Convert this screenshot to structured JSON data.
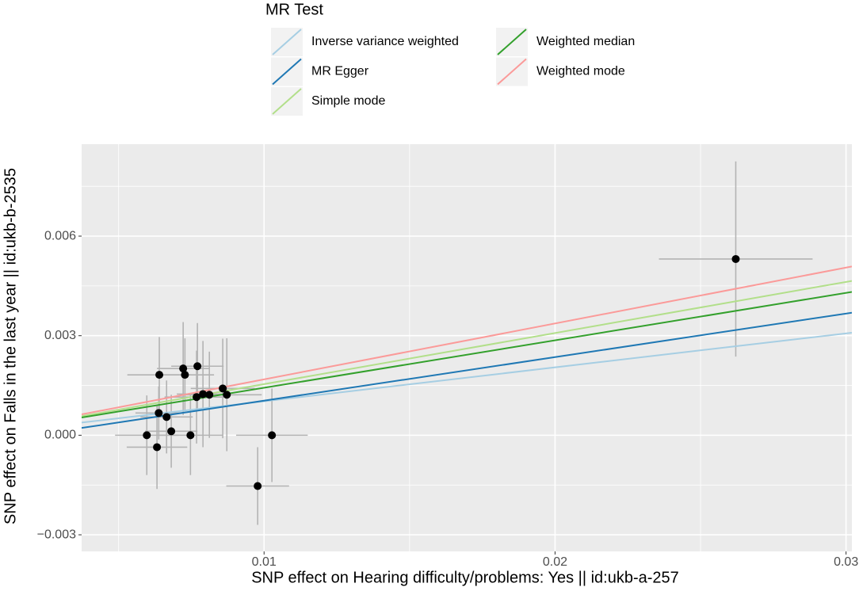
{
  "chart_data": {
    "type": "scatter",
    "xlabel": "SNP effect on Hearing difficulty/problems: Yes || id:ukb-a-257",
    "ylabel": "SNP effect on Falls in the last year || id:ukb-b-2535",
    "legend_title": "MR Test",
    "xlim": [
      0.00373,
      0.0302
    ],
    "ylim": [
      -0.0035,
      0.00877
    ],
    "xticks": [
      0.01,
      0.02,
      0.03
    ],
    "yticks": [
      {
        "value": -0.003,
        "label": "−0.003"
      },
      {
        "value": 0,
        "label": "0.000"
      },
      0.003,
      0.006
    ],
    "x_minor_ticks": [
      0.005,
      0.015,
      0.025
    ],
    "y_minor_ticks": [
      -0.0015,
      0.0015,
      0.0045,
      0.0075
    ],
    "grid": true,
    "point_color": "#000000",
    "errorbar_color": "#b3b3b3",
    "x": [
      0.02621,
      0.00978,
      0.01027,
      0.00597,
      0.00632,
      0.0064,
      0.00638,
      0.00665,
      0.00681,
      0.00722,
      0.00728,
      0.00747,
      0.00771,
      0.00768,
      0.0079,
      0.00812,
      0.00858,
      0.00872
    ],
    "y": [
      0.00531,
      -0.00153,
      0,
      0,
      -0.00036,
      0.00182,
      0.00067,
      0.00055,
      0.00012,
      0.00201,
      0.00182,
      0,
      0.00208,
      0.00115,
      0.00124,
      0.00122,
      0.00141,
      0.00122
    ],
    "x_err": [
      0.00264,
      0.00108,
      0.00123,
      0.00109,
      0.00104,
      0.0011,
      0.0008,
      0.0009,
      0.0009,
      0.0009,
      0.001,
      0.0011,
      0.0009,
      0.0011,
      0.0009,
      0.001,
      0.0011,
      0.0012
    ],
    "y_err": [
      0.00294,
      0.00117,
      0.00141,
      0.0012,
      0.00126,
      0.00114,
      0.0008,
      0.0011,
      0.0011,
      0.0014,
      0.0011,
      0.0012,
      0.0013,
      0.0014,
      0.0016,
      0.0013,
      0.0015,
      0.0017
    ],
    "lines": [
      {
        "name": "Inverse variance weighted",
        "color": "#a6cee3",
        "slope": 0.1023,
        "intercept": 0
      },
      {
        "name": "MR Egger",
        "color": "#1f78b4",
        "slope": 0.1312,
        "intercept": -0.00027
      },
      {
        "name": "Simple mode",
        "color": "#b2df8a",
        "slope": 0.154,
        "intercept": 0
      },
      {
        "name": "Weighted median",
        "color": "#33a02c",
        "slope": 0.143,
        "intercept": 0
      },
      {
        "name": "Weighted mode",
        "color": "#fb9a99",
        "slope": 0.1684,
        "intercept": 0
      }
    ]
  }
}
